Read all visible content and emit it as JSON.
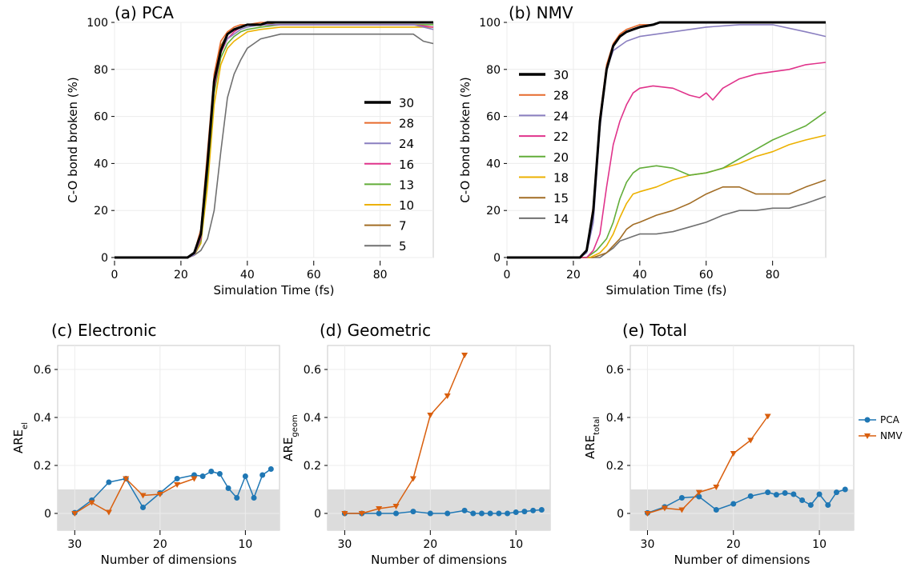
{
  "chart_data": [
    {
      "id": "a",
      "type": "line",
      "title": "(a) PCA",
      "xlabel": "Simulation Time (fs)",
      "ylabel": "C-O bond broken (%)",
      "xlim": [
        0,
        96
      ],
      "ylim": [
        0,
        100
      ],
      "xticks": [
        0,
        20,
        40,
        60,
        80
      ],
      "yticks": [
        0,
        20,
        40,
        60,
        80,
        100
      ],
      "grid": true,
      "legend_position": "right",
      "series": [
        {
          "name": "30",
          "color": "#000000",
          "width": 3,
          "x": [
            0,
            22,
            24,
            26,
            28,
            30,
            32,
            34,
            36,
            38,
            40,
            44,
            46,
            50,
            96
          ],
          "y": [
            0,
            0,
            2,
            10,
            40,
            75,
            88,
            95,
            97,
            98,
            99,
            99,
            100,
            100,
            100
          ]
        },
        {
          "name": "28",
          "color": "#e66a2c",
          "width": 1.6,
          "x": [
            0,
            22,
            24,
            26,
            28,
            30,
            32,
            34,
            36,
            38,
            40,
            44,
            46,
            96
          ],
          "y": [
            0,
            0,
            2,
            12,
            45,
            78,
            92,
            96,
            98,
            99,
            99,
            100,
            100,
            100
          ]
        },
        {
          "name": "24",
          "color": "#8a7fc0",
          "width": 1.6,
          "x": [
            0,
            22,
            24,
            26,
            28,
            30,
            32,
            34,
            36,
            38,
            40,
            44,
            50,
            90,
            96
          ],
          "y": [
            0,
            0,
            1,
            9,
            40,
            74,
            88,
            93,
            95,
            97,
            98,
            99,
            99,
            99,
            97
          ]
        },
        {
          "name": "16",
          "color": "#e0338b",
          "width": 1.6,
          "x": [
            0,
            22,
            24,
            26,
            28,
            30,
            32,
            34,
            36,
            38,
            40,
            44,
            50,
            90,
            96
          ],
          "y": [
            0,
            0,
            1,
            8,
            38,
            72,
            87,
            93,
            96,
            98,
            99,
            99,
            99,
            99,
            98
          ]
        },
        {
          "name": "13",
          "color": "#62ad39",
          "width": 1.6,
          "x": [
            0,
            22,
            24,
            26,
            28,
            30,
            32,
            34,
            36,
            38,
            40,
            44,
            50,
            90,
            96
          ],
          "y": [
            0,
            0,
            1,
            7,
            35,
            70,
            85,
            91,
            94,
            96,
            97,
            98,
            99,
            99,
            99
          ]
        },
        {
          "name": "10",
          "color": "#ecb100",
          "width": 1.6,
          "x": [
            0,
            22,
            24,
            26,
            28,
            30,
            32,
            34,
            36,
            38,
            40,
            44,
            50,
            90,
            96
          ],
          "y": [
            0,
            0,
            1,
            6,
            30,
            65,
            82,
            89,
            92,
            94,
            96,
            97,
            98,
            98,
            98
          ]
        },
        {
          "name": "7",
          "color": "#a26d25",
          "width": 1.6,
          "x": [
            0,
            22,
            24,
            26,
            28,
            30,
            32,
            34,
            36,
            38,
            40,
            44,
            50,
            90,
            96
          ],
          "y": [
            0,
            0,
            2,
            10,
            42,
            76,
            90,
            95,
            97,
            98,
            99,
            99,
            100,
            100,
            100
          ]
        },
        {
          "name": "5",
          "color": "#707070",
          "width": 1.6,
          "x": [
            0,
            22,
            24,
            26,
            28,
            30,
            32,
            34,
            36,
            38,
            40,
            42,
            44,
            50,
            90,
            93,
            96
          ],
          "y": [
            0,
            0,
            1,
            3,
            8,
            20,
            45,
            68,
            78,
            84,
            89,
            91,
            93,
            95,
            95,
            92,
            91
          ]
        }
      ]
    },
    {
      "id": "b",
      "type": "line",
      "title": "(b) NMV",
      "xlabel": "Simulation Time (fs)",
      "ylabel": "C-O bond broken (%)",
      "xlim": [
        0,
        96
      ],
      "ylim": [
        0,
        100
      ],
      "xticks": [
        0,
        20,
        40,
        60,
        80
      ],
      "yticks": [
        0,
        20,
        40,
        60,
        80,
        100
      ],
      "grid": true,
      "legend_position": "left",
      "series": [
        {
          "name": "30",
          "color": "#000000",
          "width": 3,
          "x": [
            0,
            22,
            24,
            26,
            28,
            30,
            32,
            34,
            36,
            38,
            40,
            44,
            46,
            96
          ],
          "y": [
            0,
            0,
            3,
            20,
            58,
            80,
            90,
            94,
            96,
            97,
            98,
            99,
            100,
            100
          ]
        },
        {
          "name": "28",
          "color": "#e66a2c",
          "width": 1.6,
          "x": [
            0,
            22,
            24,
            26,
            28,
            30,
            32,
            34,
            36,
            38,
            40,
            44,
            46,
            96
          ],
          "y": [
            0,
            0,
            3,
            22,
            60,
            82,
            91,
            95,
            97,
            98,
            99,
            99,
            100,
            100
          ]
        },
        {
          "name": "24",
          "color": "#8a7fc0",
          "width": 1.6,
          "x": [
            0,
            22,
            24,
            26,
            28,
            30,
            32,
            34,
            36,
            40,
            50,
            60,
            70,
            80,
            90,
            96
          ],
          "y": [
            0,
            0,
            2,
            15,
            55,
            80,
            88,
            90,
            92,
            94,
            96,
            98,
            99,
            99,
            96,
            94
          ]
        },
        {
          "name": "22",
          "color": "#e0338b",
          "width": 1.6,
          "x": [
            0,
            24,
            26,
            28,
            30,
            32,
            34,
            36,
            38,
            40,
            44,
            50,
            55,
            58,
            60,
            62,
            65,
            70,
            75,
            80,
            85,
            90,
            96
          ],
          "y": [
            0,
            0,
            3,
            10,
            30,
            48,
            58,
            65,
            70,
            72,
            73,
            72,
            69,
            68,
            70,
            67,
            72,
            76,
            78,
            79,
            80,
            82,
            83
          ]
        },
        {
          "name": "20",
          "color": "#62ad39",
          "width": 1.6,
          "x": [
            0,
            24,
            27,
            30,
            32,
            34,
            36,
            38,
            40,
            45,
            50,
            55,
            60,
            65,
            70,
            75,
            80,
            85,
            90,
            96
          ],
          "y": [
            0,
            0,
            3,
            8,
            15,
            25,
            32,
            36,
            38,
            39,
            38,
            35,
            36,
            38,
            42,
            46,
            50,
            53,
            56,
            62
          ]
        },
        {
          "name": "18",
          "color": "#ecb100",
          "width": 1.6,
          "x": [
            0,
            25,
            28,
            30,
            32,
            34,
            36,
            38,
            40,
            45,
            50,
            55,
            60,
            65,
            70,
            75,
            80,
            85,
            90,
            96
          ],
          "y": [
            0,
            0,
            2,
            5,
            10,
            17,
            23,
            27,
            28,
            30,
            33,
            35,
            36,
            38,
            40,
            43,
            45,
            48,
            50,
            52
          ]
        },
        {
          "name": "15",
          "color": "#a26d25",
          "width": 1.6,
          "x": [
            0,
            26,
            30,
            32,
            34,
            36,
            38,
            40,
            45,
            50,
            55,
            60,
            65,
            70,
            75,
            80,
            85,
            90,
            96
          ],
          "y": [
            0,
            0,
            2,
            5,
            8,
            12,
            14,
            15,
            18,
            20,
            23,
            27,
            30,
            30,
            27,
            27,
            27,
            30,
            33
          ]
        },
        {
          "name": "14",
          "color": "#707070",
          "width": 1.6,
          "x": [
            0,
            28,
            30,
            32,
            34,
            36,
            38,
            40,
            45,
            50,
            55,
            60,
            65,
            70,
            75,
            80,
            85,
            90,
            96
          ],
          "y": [
            0,
            0,
            2,
            4,
            7,
            8,
            9,
            10,
            10,
            11,
            13,
            15,
            18,
            20,
            20,
            21,
            21,
            23,
            26
          ]
        }
      ]
    },
    {
      "id": "c",
      "type": "line",
      "title": "(c) Electronic",
      "xlabel": "Number of dimensions",
      "ylabel": "ARE",
      "ylabel_sub": "el",
      "xlim": [
        32,
        6
      ],
      "ylim": [
        -0.07,
        0.7
      ],
      "xticks": [
        30,
        20,
        10
      ],
      "yticks": [
        0,
        0.2,
        0.4,
        0.6
      ],
      "band": [
        -0.07,
        0.1
      ],
      "grid": true,
      "series": [
        {
          "name": "PCA",
          "color": "#1f77b4",
          "marker": "circle",
          "x": [
            30,
            28,
            26,
            24,
            22,
            20,
            18,
            16,
            15,
            14,
            13,
            12,
            11,
            10,
            9,
            8,
            7
          ],
          "y": [
            0.003,
            0.055,
            0.13,
            0.145,
            0.025,
            0.085,
            0.145,
            0.16,
            0.155,
            0.175,
            0.165,
            0.105,
            0.065,
            0.155,
            0.065,
            0.16,
            0.185
          ]
        },
        {
          "name": "NMV",
          "color": "#d95f0e",
          "marker": "triangle",
          "x": [
            30,
            28,
            26,
            24,
            22,
            20,
            18,
            16
          ],
          "y": [
            0.0,
            0.045,
            0.005,
            0.145,
            0.075,
            0.08,
            0.12,
            0.145
          ]
        }
      ]
    },
    {
      "id": "d",
      "type": "line",
      "title": "(d) Geometric",
      "xlabel": "Number of dimensions",
      "ylabel": "ARE",
      "ylabel_sub": "geom",
      "xlim": [
        32,
        6
      ],
      "ylim": [
        -0.07,
        0.7
      ],
      "xticks": [
        30,
        20,
        10
      ],
      "yticks": [
        0,
        0.2,
        0.4,
        0.6
      ],
      "band": [
        -0.07,
        0.1
      ],
      "grid": true,
      "series": [
        {
          "name": "PCA",
          "color": "#1f77b4",
          "marker": "circle",
          "x": [
            30,
            28,
            26,
            24,
            22,
            20,
            18,
            16,
            15,
            14,
            13,
            12,
            11,
            10,
            9,
            8,
            7
          ],
          "y": [
            0,
            0,
            0,
            0,
            0.008,
            0,
            0,
            0.012,
            0,
            0,
            0,
            0,
            0,
            0.005,
            0.008,
            0.012,
            0.015
          ]
        },
        {
          "name": "NMV",
          "color": "#d95f0e",
          "marker": "triangle",
          "x": [
            30,
            28,
            26,
            24,
            22,
            20,
            18,
            16
          ],
          "y": [
            0,
            0,
            0.02,
            0.03,
            0.145,
            0.41,
            0.49,
            0.66
          ]
        }
      ]
    },
    {
      "id": "e",
      "type": "line",
      "title": "(e) Total",
      "xlabel": "Number of dimensions",
      "ylabel": "ARE",
      "ylabel_sub": "total",
      "xlim": [
        32,
        6
      ],
      "ylim": [
        -0.07,
        0.7
      ],
      "xticks": [
        30,
        20,
        10
      ],
      "yticks": [
        0,
        0.2,
        0.4,
        0.6
      ],
      "band": [
        -0.07,
        0.1
      ],
      "grid": true,
      "series": [
        {
          "name": "PCA",
          "color": "#1f77b4",
          "marker": "circle",
          "x": [
            30,
            28,
            26,
            24,
            22,
            20,
            18,
            16,
            15,
            14,
            13,
            12,
            11,
            10,
            9,
            8,
            7
          ],
          "y": [
            0.002,
            0.027,
            0.065,
            0.07,
            0.015,
            0.04,
            0.072,
            0.088,
            0.078,
            0.085,
            0.08,
            0.055,
            0.035,
            0.08,
            0.035,
            0.088,
            0.1
          ]
        },
        {
          "name": "NMV",
          "color": "#d95f0e",
          "marker": "triangle",
          "x": [
            30,
            28,
            26,
            24,
            22,
            20,
            18,
            16
          ],
          "y": [
            0,
            0.022,
            0.015,
            0.088,
            0.11,
            0.25,
            0.305,
            0.405
          ]
        }
      ]
    }
  ],
  "shared_legend": [
    {
      "name": "PCA",
      "color": "#1f77b4",
      "marker": "circle"
    },
    {
      "name": "NMV",
      "color": "#d95f0e",
      "marker": "triangle"
    }
  ]
}
